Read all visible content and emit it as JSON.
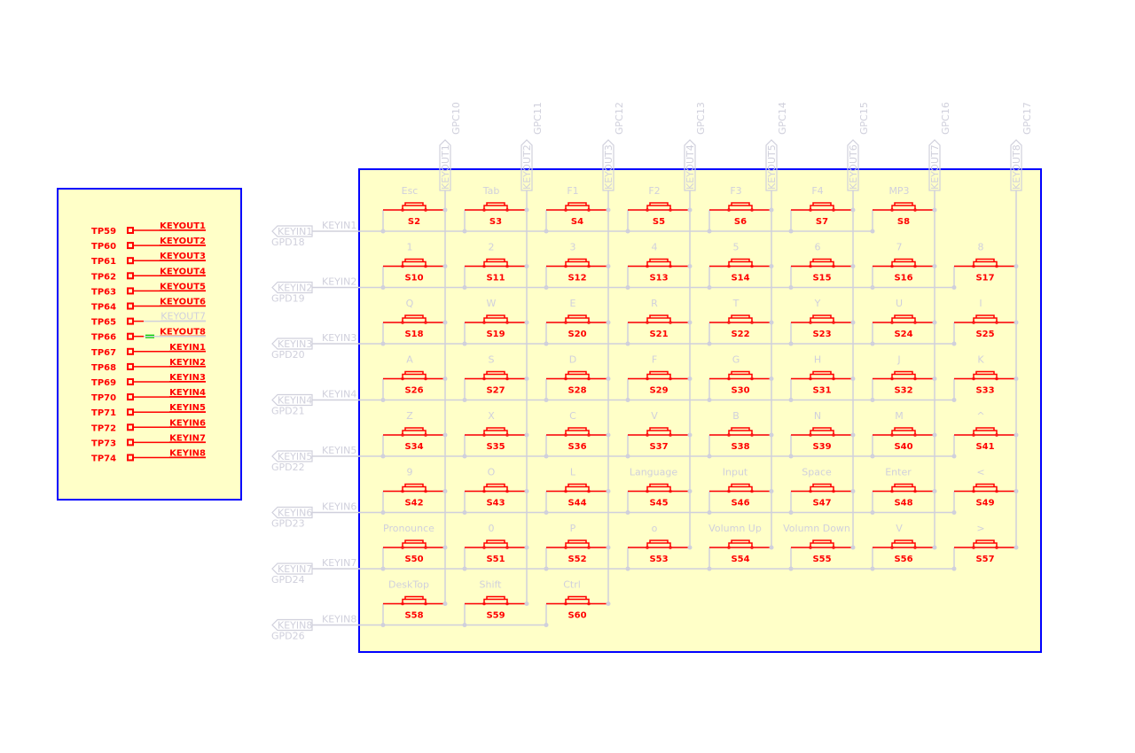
{
  "colors": {
    "sheet_border": "#0000ff",
    "sheet_fill": "#ffffc8",
    "component": "#ff0000",
    "wire": "#d0d0dc",
    "overlap_text": "#00d000"
  },
  "testpoints": [
    {
      "ref": "TP59",
      "net": "KEYOUT1"
    },
    {
      "ref": "TP60",
      "net": "KEYOUT2"
    },
    {
      "ref": "TP61",
      "net": "KEYOUT3"
    },
    {
      "ref": "TP62",
      "net": "KEYOUT4"
    },
    {
      "ref": "TP63",
      "net": "KEYOUT5"
    },
    {
      "ref": "TP64",
      "net": "KEYOUT6"
    },
    {
      "ref": "TP65",
      "net": "KEYOUT7",
      "dim": true
    },
    {
      "ref": "TP66",
      "net": "KEYOUT8",
      "overlap": true
    },
    {
      "ref": "TP67",
      "net": "KEYIN1"
    },
    {
      "ref": "TP68",
      "net": "KEYIN2"
    },
    {
      "ref": "TP69",
      "net": "KEYIN3"
    },
    {
      "ref": "TP70",
      "net": "KEYIN4"
    },
    {
      "ref": "TP71",
      "net": "KEYIN5"
    },
    {
      "ref": "TP72",
      "net": "KEYIN6"
    },
    {
      "ref": "TP73",
      "net": "KEYIN7"
    },
    {
      "ref": "TP74",
      "net": "KEYIN8"
    }
  ],
  "columns": [
    {
      "gpio": "GPC10",
      "net": "KEYOUT1"
    },
    {
      "gpio": "GPC11",
      "net": "KEYOUT2"
    },
    {
      "gpio": "GPC12",
      "net": "KEYOUT3"
    },
    {
      "gpio": "GPC13",
      "net": "KEYOUT4"
    },
    {
      "gpio": "GPC14",
      "net": "KEYOUT5"
    },
    {
      "gpio": "GPC15",
      "net": "KEYOUT6"
    },
    {
      "gpio": "GPC16",
      "net": "KEYOUT7"
    },
    {
      "gpio": "GPC17",
      "net": "KEYOUT8"
    }
  ],
  "rows": [
    {
      "net": "KEYIN1",
      "gpio": "GPD18",
      "keys": [
        [
          "Esc",
          "S2"
        ],
        [
          "Tab",
          "S3"
        ],
        [
          "F1",
          "S4"
        ],
        [
          "F2",
          "S5"
        ],
        [
          "F3",
          "S6"
        ],
        [
          "F4",
          "S7"
        ],
        [
          "MP3",
          "S8"
        ]
      ]
    },
    {
      "net": "KEYIN2",
      "gpio": "GPD19",
      "keys": [
        [
          "1",
          "S10"
        ],
        [
          "2",
          "S11"
        ],
        [
          "3",
          "S12"
        ],
        [
          "4",
          "S13"
        ],
        [
          "5",
          "S14"
        ],
        [
          "6",
          "S15"
        ],
        [
          "7",
          "S16"
        ],
        [
          "8",
          "S17"
        ]
      ]
    },
    {
      "net": "KEYIN3",
      "gpio": "GPD20",
      "keys": [
        [
          "Q",
          "S18"
        ],
        [
          "W",
          "S19"
        ],
        [
          "E",
          "S20"
        ],
        [
          "R",
          "S21"
        ],
        [
          "T",
          "S22"
        ],
        [
          "Y",
          "S23"
        ],
        [
          "U",
          "S24"
        ],
        [
          "I",
          "S25"
        ]
      ]
    },
    {
      "net": "KEYIN4",
      "gpio": "GPD21",
      "keys": [
        [
          "A",
          "S26"
        ],
        [
          "S",
          "S27"
        ],
        [
          "D",
          "S28"
        ],
        [
          "F",
          "S29"
        ],
        [
          "G",
          "S30"
        ],
        [
          "H",
          "S31"
        ],
        [
          "J",
          "S32"
        ],
        [
          "K",
          "S33"
        ]
      ]
    },
    {
      "net": "KEYIN5",
      "gpio": "GPD22",
      "keys": [
        [
          "Z",
          "S34"
        ],
        [
          "X",
          "S35"
        ],
        [
          "C",
          "S36"
        ],
        [
          "V",
          "S37"
        ],
        [
          "B",
          "S38"
        ],
        [
          "N",
          "S39"
        ],
        [
          "M",
          "S40"
        ],
        [
          "^",
          "S41"
        ]
      ]
    },
    {
      "net": "KEYIN6",
      "gpio": "GPD23",
      "keys": [
        [
          "9",
          "S42"
        ],
        [
          "O",
          "S43"
        ],
        [
          "L",
          "S44"
        ],
        [
          "Language",
          "S45"
        ],
        [
          "Input",
          "S46"
        ],
        [
          "Space",
          "S47"
        ],
        [
          "Enter",
          "S48"
        ],
        [
          "<",
          "S49"
        ]
      ]
    },
    {
      "net": "KEYIN7",
      "gpio": "GPD24",
      "keys": [
        [
          "Pronounce",
          "S50"
        ],
        [
          "0",
          "S51"
        ],
        [
          "P",
          "S52"
        ],
        [
          "o",
          "S53"
        ],
        [
          "Volumn Up",
          "S54"
        ],
        [
          "Volumn Down",
          "S55"
        ],
        [
          "V",
          "S56"
        ],
        [
          ">",
          "S57"
        ]
      ]
    },
    {
      "net": "KEYIN8",
      "gpio": "GPD26",
      "keys": [
        [
          "DeskTop",
          "S58"
        ],
        [
          "Shift",
          "S59"
        ],
        [
          "Ctrl",
          "S60"
        ]
      ]
    }
  ]
}
